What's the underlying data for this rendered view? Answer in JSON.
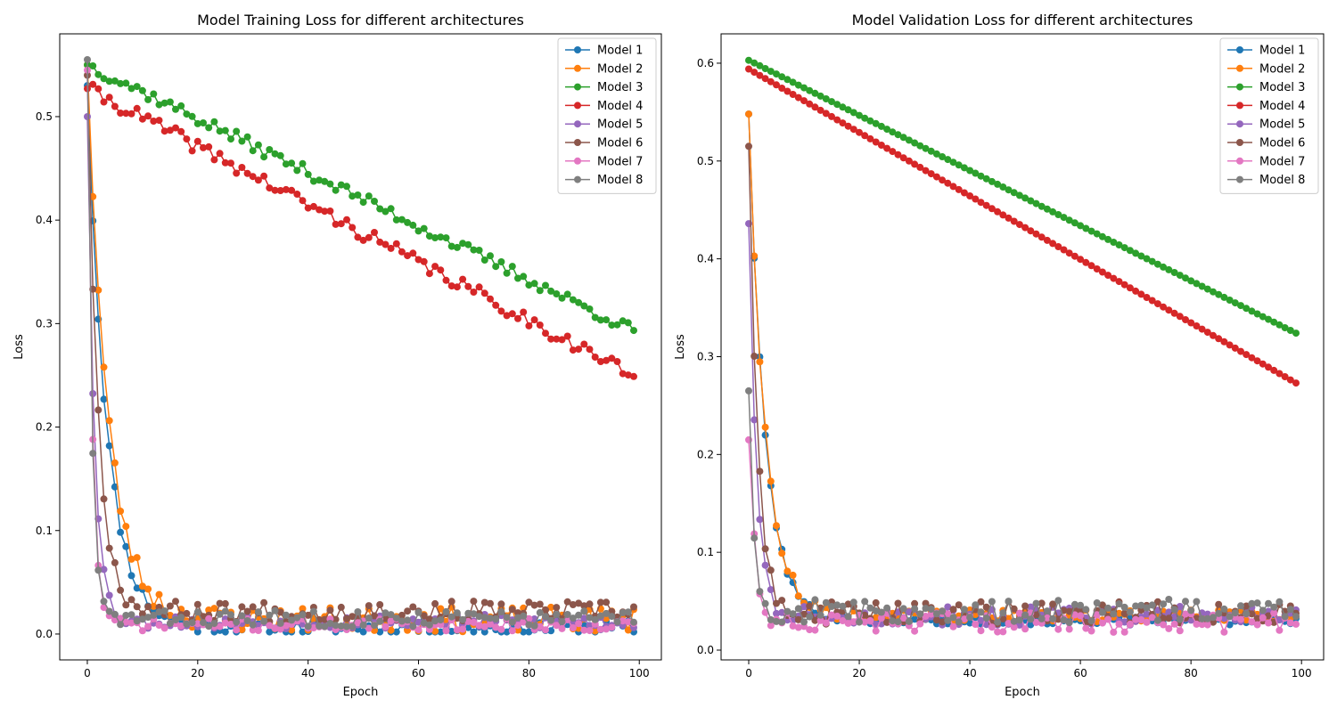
{
  "chart_data": [
    {
      "type": "line",
      "title": "Model Training Loss for different architectures",
      "xlabel": "Epoch",
      "ylabel": "Loss",
      "xlim": [
        -5,
        104
      ],
      "ylim": [
        -0.025,
        0.58
      ],
      "xticks": [
        0,
        20,
        40,
        60,
        80,
        100
      ],
      "yticks": [
        0.0,
        0.1,
        0.2,
        0.3,
        0.4,
        0.5
      ],
      "grid": false,
      "legend": "top-right",
      "series": [
        {
          "name": "Model 1",
          "color": "#1f77b4",
          "curve": "fast",
          "start": 0.53,
          "end": 0.006,
          "tau": 3.6,
          "noise": 0.008,
          "seed": 11
        },
        {
          "name": "Model 2",
          "color": "#ff7f0e",
          "curve": "fast",
          "start": 0.55,
          "end": 0.014,
          "tau": 3.8,
          "noise": 0.012,
          "seed": 23
        },
        {
          "name": "Model 3",
          "color": "#2ca02c",
          "curve": "linear",
          "start": 0.55,
          "end": 0.293,
          "noise": 0.006,
          "seed": 37
        },
        {
          "name": "Model 4",
          "color": "#d62728",
          "curve": "linear",
          "start": 0.527,
          "end": 0.25,
          "noise": 0.007,
          "seed": 41
        },
        {
          "name": "Model 5",
          "color": "#9467bd",
          "curve": "fast",
          "start": 0.5,
          "end": 0.012,
          "tau": 1.3,
          "noise": 0.007,
          "seed": 53
        },
        {
          "name": "Model 6",
          "color": "#8c564b",
          "curve": "fast",
          "start": 0.54,
          "end": 0.022,
          "tau": 2.0,
          "noise": 0.01,
          "seed": 67
        },
        {
          "name": "Model 7",
          "color": "#e377c2",
          "curve": "fast",
          "start": 0.545,
          "end": 0.009,
          "tau": 0.9,
          "noise": 0.006,
          "seed": 71
        },
        {
          "name": "Model 8",
          "color": "#7f7f7f",
          "curve": "fast",
          "start": 0.555,
          "end": 0.015,
          "tau": 0.8,
          "noise": 0.008,
          "seed": 83
        }
      ]
    },
    {
      "type": "line",
      "title": "Model Validation Loss for different architectures",
      "xlabel": "Epoch",
      "ylabel": "Loss",
      "xlim": [
        -5,
        104
      ],
      "ylim": [
        -0.01,
        0.63
      ],
      "xticks": [
        0,
        20,
        40,
        60,
        80,
        100
      ],
      "yticks": [
        0.0,
        0.1,
        0.2,
        0.3,
        0.4,
        0.5,
        0.6
      ],
      "grid": false,
      "legend": "top-right",
      "series": [
        {
          "name": "Model 1",
          "color": "#1f77b4",
          "curve": "fast",
          "start": 0.548,
          "end": 0.03,
          "tau": 3.0,
          "noise": 0.004,
          "seed": 101
        },
        {
          "name": "Model 2",
          "color": "#ff7f0e",
          "curve": "fast",
          "start": 0.548,
          "end": 0.035,
          "tau": 3.0,
          "noise": 0.006,
          "seed": 113
        },
        {
          "name": "Model 3",
          "color": "#2ca02c",
          "curve": "linear",
          "start": 0.603,
          "end": 0.324,
          "noise": 0.0,
          "seed": 127
        },
        {
          "name": "Model 4",
          "color": "#d62728",
          "curve": "linear",
          "start": 0.594,
          "end": 0.273,
          "noise": 0.0,
          "seed": 131
        },
        {
          "name": "Model 5",
          "color": "#9467bd",
          "curve": "fast",
          "start": 0.436,
          "end": 0.035,
          "tau": 1.4,
          "noise": 0.01,
          "seed": 137
        },
        {
          "name": "Model 6",
          "color": "#8c564b",
          "curve": "fast",
          "start": 0.515,
          "end": 0.038,
          "tau": 1.6,
          "noise": 0.012,
          "seed": 149
        },
        {
          "name": "Model 7",
          "color": "#e377c2",
          "curve": "fast",
          "start": 0.215,
          "end": 0.028,
          "tau": 1.2,
          "noise": 0.01,
          "seed": 151
        },
        {
          "name": "Model 8",
          "color": "#7f7f7f",
          "curve": "fast",
          "start": 0.265,
          "end": 0.04,
          "tau": 0.9,
          "noise": 0.012,
          "seed": 157
        }
      ]
    }
  ]
}
